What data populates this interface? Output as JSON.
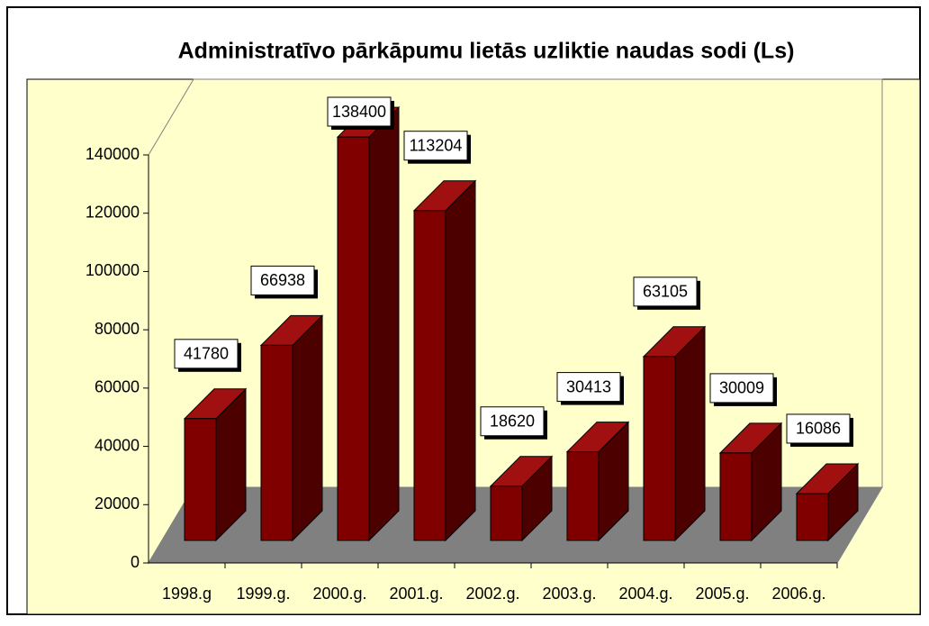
{
  "chart_data": {
    "type": "bar3d",
    "title": "Administratīvo pārkāpumu lietās uzliktie naudas sodi (Ls)",
    "categories": [
      "1998.g",
      "1999.g.",
      "2000.g.",
      "2001.g.",
      "2002.g.",
      "2003.g.",
      "2004.g.",
      "2005.g.",
      "2006.g."
    ],
    "values": [
      41780,
      66938,
      138400,
      113204,
      18620,
      30413,
      63105,
      30009,
      16086
    ],
    "color": "#800000",
    "ylim": [
      0,
      140000
    ],
    "yticks": [
      0,
      20000,
      40000,
      60000,
      80000,
      100000,
      120000,
      140000
    ]
  }
}
